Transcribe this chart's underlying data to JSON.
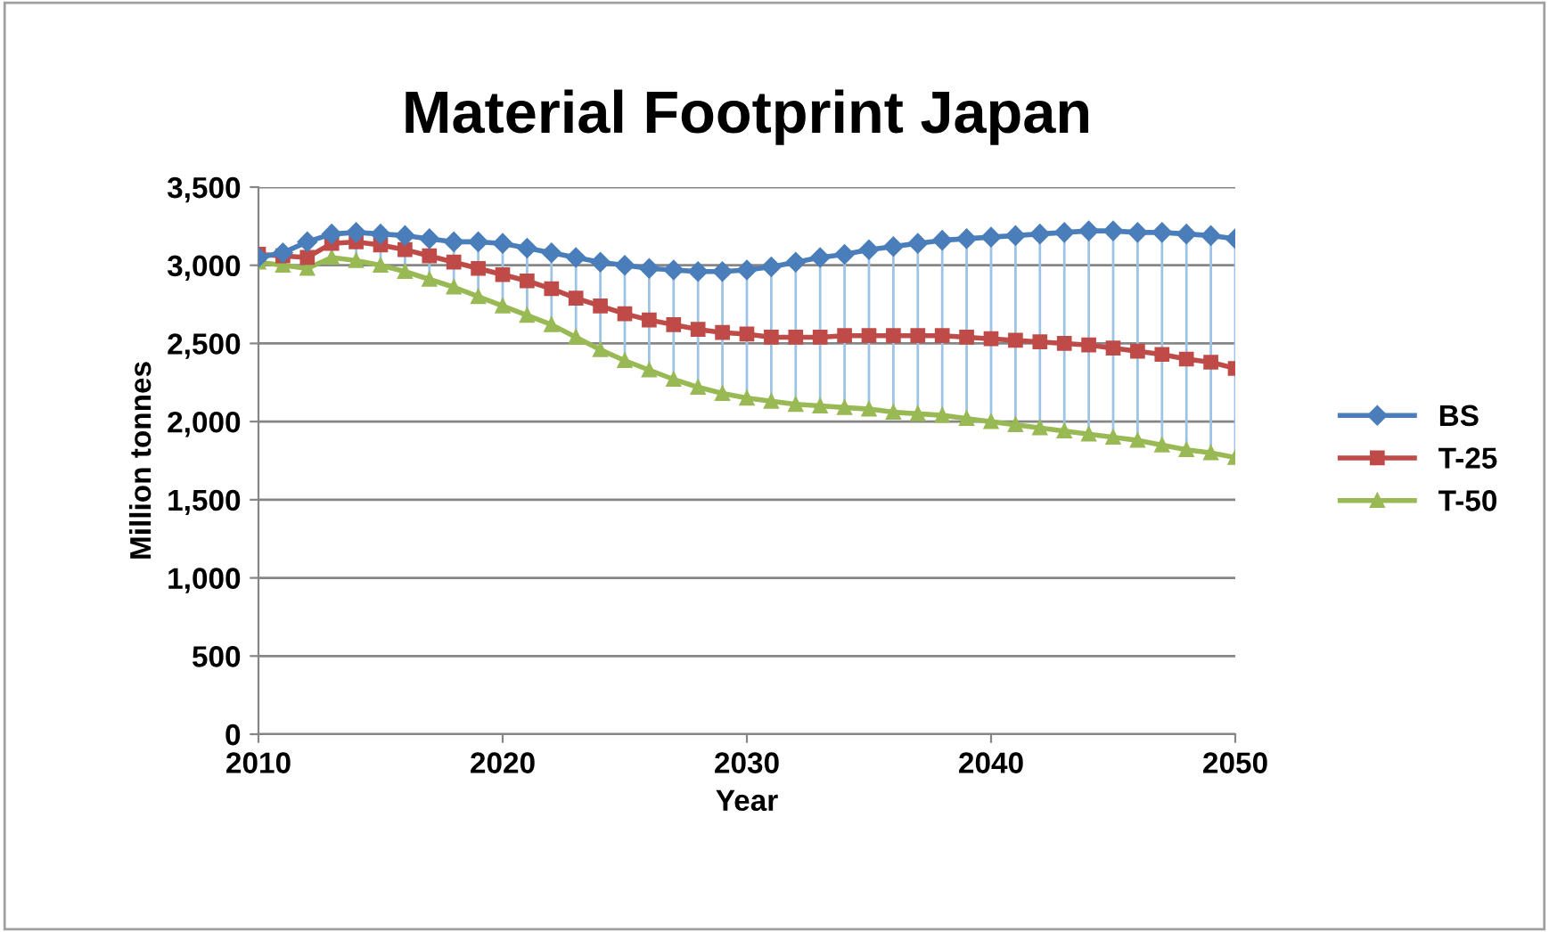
{
  "chart_data": {
    "type": "line",
    "title": "Material Footprint Japan",
    "xlabel": "Year",
    "ylabel": "Million tonnes",
    "x": [
      2010,
      2011,
      2012,
      2013,
      2014,
      2015,
      2016,
      2017,
      2018,
      2019,
      2020,
      2021,
      2022,
      2023,
      2024,
      2025,
      2026,
      2027,
      2028,
      2029,
      2030,
      2031,
      2032,
      2033,
      2034,
      2035,
      2036,
      2037,
      2038,
      2039,
      2040,
      2041,
      2042,
      2043,
      2044,
      2045,
      2046,
      2047,
      2048,
      2049,
      2050
    ],
    "series": [
      {
        "name": "BS",
        "color": "#4a7ebb",
        "marker": "diamond",
        "values": [
          3050,
          3080,
          3150,
          3200,
          3210,
          3200,
          3190,
          3170,
          3150,
          3150,
          3140,
          3110,
          3080,
          3050,
          3020,
          3000,
          2980,
          2970,
          2960,
          2960,
          2970,
          2990,
          3020,
          3050,
          3070,
          3100,
          3120,
          3140,
          3160,
          3170,
          3180,
          3190,
          3200,
          3210,
          3220,
          3220,
          3210,
          3210,
          3200,
          3190,
          3170
        ]
      },
      {
        "name": "T-25",
        "color": "#be4b48",
        "marker": "square",
        "values": [
          3070,
          3060,
          3050,
          3140,
          3150,
          3130,
          3100,
          3060,
          3020,
          2980,
          2940,
          2900,
          2850,
          2790,
          2740,
          2690,
          2650,
          2620,
          2590,
          2570,
          2560,
          2540,
          2540,
          2540,
          2550,
          2550,
          2550,
          2550,
          2550,
          2540,
          2530,
          2520,
          2510,
          2500,
          2490,
          2470,
          2450,
          2430,
          2400,
          2380,
          2340
        ]
      },
      {
        "name": "T-50",
        "color": "#98b954",
        "marker": "triangle",
        "values": [
          3020,
          3000,
          2980,
          3050,
          3030,
          3000,
          2960,
          2910,
          2860,
          2800,
          2740,
          2680,
          2620,
          2540,
          2460,
          2390,
          2330,
          2270,
          2220,
          2180,
          2150,
          2130,
          2110,
          2100,
          2090,
          2080,
          2060,
          2050,
          2040,
          2020,
          2000,
          1980,
          1960,
          1940,
          1920,
          1900,
          1880,
          1850,
          1820,
          1800,
          1770
        ],
        "errors": [
          [
            3020,
            3050
          ],
          [
            3000,
            3080
          ],
          [
            2980,
            3150
          ],
          [
            3050,
            3200
          ],
          [
            3030,
            3210
          ],
          [
            3000,
            3200
          ],
          [
            2960,
            3190
          ],
          [
            2910,
            3170
          ],
          [
            2860,
            3150
          ],
          [
            2800,
            3150
          ],
          [
            2740,
            3140
          ],
          [
            2680,
            3110
          ],
          [
            2620,
            3080
          ],
          [
            2540,
            3050
          ],
          [
            2460,
            3020
          ],
          [
            2390,
            3000
          ],
          [
            2330,
            2980
          ],
          [
            2270,
            2970
          ],
          [
            2220,
            2960
          ],
          [
            2180,
            2960
          ],
          [
            2150,
            2970
          ],
          [
            2130,
            2990
          ],
          [
            2110,
            3020
          ],
          [
            2100,
            3050
          ],
          [
            2090,
            3070
          ],
          [
            2080,
            3100
          ],
          [
            2060,
            3120
          ],
          [
            2050,
            3140
          ],
          [
            2040,
            3160
          ],
          [
            2020,
            3170
          ],
          [
            2000,
            3180
          ],
          [
            1980,
            3190
          ],
          [
            1960,
            3200
          ],
          [
            1940,
            3210
          ],
          [
            1920,
            3220
          ],
          [
            1900,
            3220
          ],
          [
            1880,
            3210
          ],
          [
            1850,
            3210
          ],
          [
            1820,
            3200
          ],
          [
            1800,
            3190
          ],
          [
            1770,
            3170
          ]
        ]
      }
    ],
    "xlim": [
      2010,
      2050
    ],
    "xticks": [
      2010,
      2020,
      2030,
      2040,
      2050
    ],
    "ylim": [
      0,
      3500
    ],
    "yticks": [
      0,
      {
        "value": 500,
        "label": "500"
      },
      {
        "value": 1000,
        "label": "1,000"
      },
      {
        "value": 1500,
        "label": "1,500"
      },
      {
        "value": 2000,
        "label": "2,000"
      },
      {
        "value": 2500,
        "label": "2,500"
      },
      {
        "value": 3000,
        "label": "3,000"
      },
      {
        "value": 3500,
        "label": "3,500"
      }
    ],
    "grid": "y",
    "legend": "right",
    "line_style": "solid"
  }
}
